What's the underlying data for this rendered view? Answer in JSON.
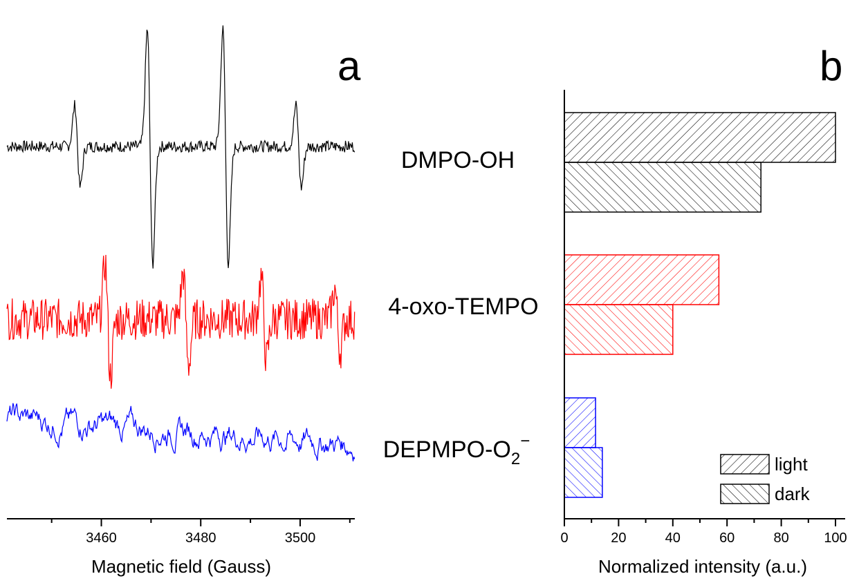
{
  "chart_data": [
    {
      "type": "line",
      "panel_label": "a",
      "xlabel": "Magnetic field (Gauss)",
      "ylabel": "",
      "xlim": [
        3441,
        3511
      ],
      "x_ticks": [
        3460,
        3480,
        3500
      ],
      "grid": false,
      "series": [
        {
          "color": "#000000",
          "peaks": [
            {
              "x": 3455.2,
              "amp": 0.35
            },
            {
              "x": 3469.8,
              "amp": 1.0
            },
            {
              "x": 3485.0,
              "amp": 1.0
            },
            {
              "x": 3499.7,
              "amp": 0.35
            }
          ],
          "noise": 0.05
        },
        {
          "color": "#ff0000",
          "peaks": [
            {
              "x": 3461.3,
              "amp": 0.55
            },
            {
              "x": 3477.0,
              "amp": 0.45
            },
            {
              "x": 3492.7,
              "amp": 0.4
            },
            {
              "x": 3507.5,
              "amp": 0.3
            }
          ],
          "noise": 0.2
        },
        {
          "color": "#0000ff",
          "peaks": [],
          "noise": 0.55
        }
      ]
    },
    {
      "type": "bar",
      "orientation": "horizontal",
      "panel_label": "b",
      "categories": [
        "DMPO-OH",
        "4-oxo-TEMPO",
        "DEPMPO-O"
      ],
      "category_subscript": [
        "",
        "",
        "2"
      ],
      "category_superscript": [
        "",
        "",
        "−"
      ],
      "colors": [
        "#000000",
        "#ff0000",
        "#0000ff"
      ],
      "series": [
        {
          "name": "light",
          "values": [
            100,
            57,
            11.5
          ],
          "hatch": "forward"
        },
        {
          "name": "dark",
          "values": [
            72.5,
            40,
            14
          ],
          "hatch": "backward"
        }
      ],
      "xlabel": "Normalized intensity (a.u.)",
      "xlim": [
        0,
        102
      ],
      "x_ticks": [
        0,
        20,
        40,
        60,
        80,
        100
      ],
      "legend_position": "bottom-right",
      "grid": false
    }
  ]
}
